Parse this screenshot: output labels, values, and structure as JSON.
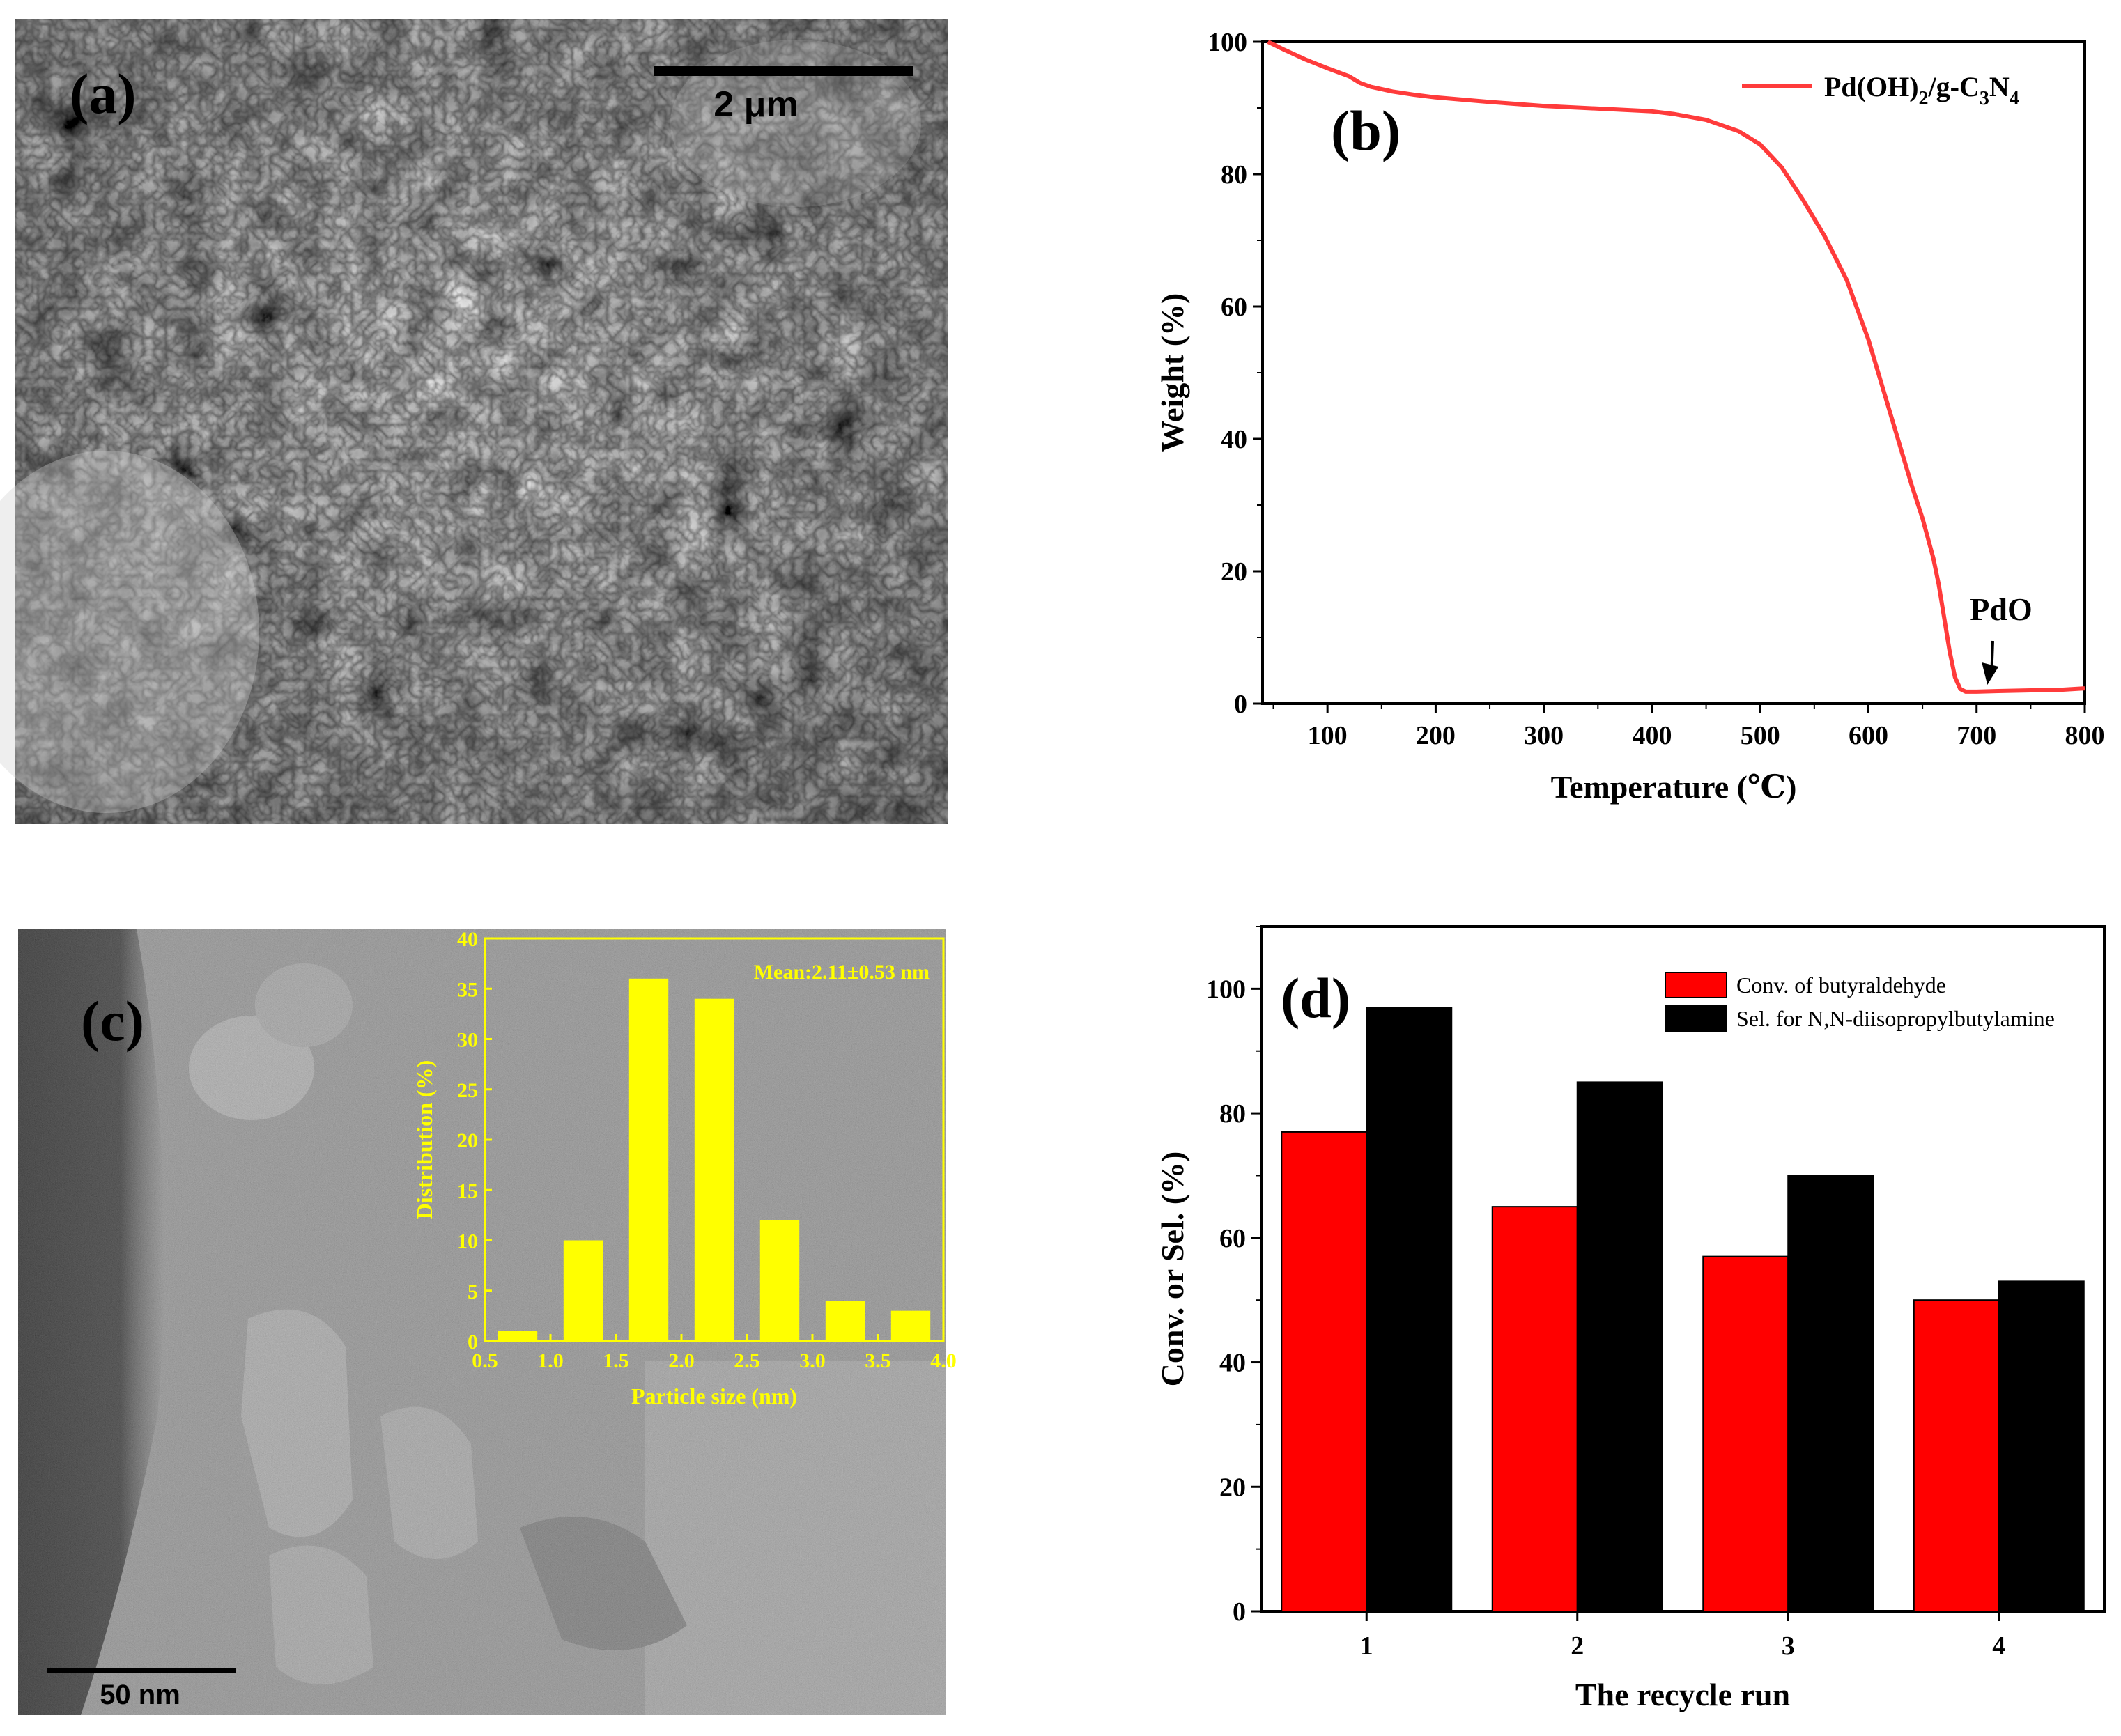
{
  "panel_a": {
    "letter": "(a)",
    "scale_label": "2 μm"
  },
  "panel_c": {
    "letter": "(c)",
    "scale_label": "50 nm"
  },
  "chart_data": [
    {
      "id": "b",
      "type": "line",
      "panel_label": "(b)",
      "xlabel": "Temperature (℃)",
      "ylabel": "Weight (%)",
      "xlim": [
        40,
        800
      ],
      "ylim": [
        0,
        100
      ],
      "xticks": [
        100,
        200,
        300,
        400,
        500,
        600,
        700,
        800
      ],
      "yticks": [
        0,
        20,
        40,
        60,
        80,
        100
      ],
      "legend_position": "top-right",
      "series": [
        {
          "name": "Pd(OH)2/g-C3N4",
          "legend_base": "Pd(OH)",
          "legend_sub1": "2",
          "legend_mid": "/g-C",
          "legend_sub2": "3",
          "legend_mid2": "N",
          "legend_sub3": "4",
          "color": "#ff3b3b",
          "x": [
            45,
            60,
            80,
            100,
            120,
            130,
            140,
            160,
            180,
            200,
            250,
            300,
            350,
            400,
            420,
            450,
            480,
            500,
            520,
            540,
            560,
            580,
            600,
            620,
            640,
            650,
            660,
            665,
            670,
            675,
            680,
            685,
            690,
            700,
            720,
            750,
            780,
            800
          ],
          "y": [
            100,
            98.8,
            97.3,
            96,
            94.8,
            93.8,
            93.2,
            92.5,
            92,
            91.6,
            90.9,
            90.3,
            89.9,
            89.5,
            89.1,
            88.2,
            86.5,
            84.5,
            81,
            76,
            70.5,
            64,
            55,
            44,
            33,
            28,
            22,
            18,
            13,
            8,
            4,
            2.2,
            1.8,
            1.8,
            1.9,
            2,
            2.1,
            2.3
          ]
        }
      ],
      "annotation": {
        "text": "PdO",
        "x": 710,
        "y": 2
      }
    },
    {
      "id": "c_inset",
      "type": "bar",
      "xlabel": "Particle size (nm)",
      "ylabel": "Distribution (%)",
      "annotation": "Mean:2.11±0.53 nm",
      "xlim": [
        0.5,
        4.0
      ],
      "ylim": [
        0,
        40
      ],
      "xticks": [
        0.5,
        1.0,
        1.5,
        2.0,
        2.5,
        3.0,
        3.5,
        4.0
      ],
      "yticks": [
        0,
        5,
        10,
        15,
        20,
        25,
        30,
        35,
        40
      ],
      "x": [
        0.75,
        1.25,
        1.75,
        2.25,
        2.75,
        3.25,
        3.75
      ],
      "bin_width": 0.3,
      "values": [
        1,
        10,
        36,
        34,
        12,
        4,
        3
      ],
      "color": "#ffff00"
    },
    {
      "id": "d",
      "type": "bar",
      "panel_label": "(d)",
      "xlabel": "The recycle run",
      "ylabel": "Conv. or Sel. (%)",
      "categories": [
        "1",
        "2",
        "3",
        "4"
      ],
      "ylim": [
        0,
        110
      ],
      "yticks": [
        0,
        20,
        40,
        60,
        80,
        100
      ],
      "legend_position": "top-right",
      "series": [
        {
          "name": "Conv. of butyraldehyde",
          "color": "#ff0000",
          "values": [
            77,
            65,
            57,
            50
          ]
        },
        {
          "name": "Sel. for N,N-diisopropylbutylamine",
          "color": "#000000",
          "values": [
            97,
            85,
            70,
            53
          ]
        }
      ]
    }
  ]
}
